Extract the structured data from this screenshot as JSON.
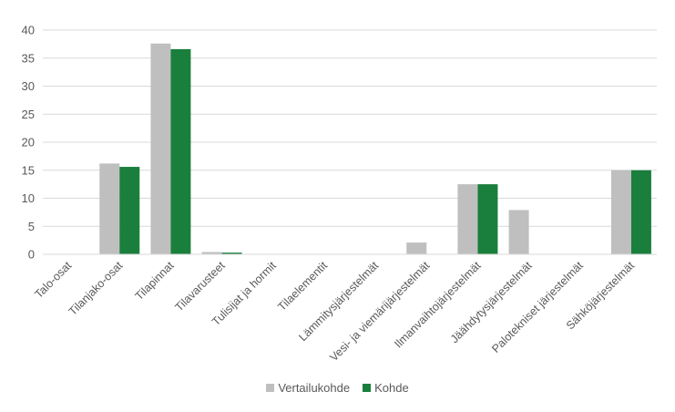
{
  "chart_data": {
    "type": "bar",
    "categories": [
      "Talo-osat",
      "Tilanjako-osat",
      "Tilapinnat",
      "Tilavarusteet",
      "Tulisijat ja hormit",
      "Tilaelementit",
      "Lämmitysjärjestelmät",
      "Vesi- ja viemärijärjestelmät",
      "Ilmanvaihtojärjestelmät",
      "Jäähdytysjärjestelmät",
      "Palotekniset järjestelmät",
      "Sähköjärjestelmät"
    ],
    "series": [
      {
        "name": "Vertailukohde",
        "color": "#bfbfbf",
        "values": [
          0,
          16.2,
          37.6,
          0.4,
          0,
          0,
          0,
          2.1,
          12.5,
          7.9,
          0,
          15.0
        ]
      },
      {
        "name": "Kohde",
        "color": "#1a7f3c",
        "values": [
          0,
          15.6,
          36.6,
          0.3,
          0,
          0,
          0,
          0,
          12.5,
          0,
          0,
          15.0
        ]
      }
    ],
    "ylim": [
      0,
      40
    ],
    "yticks": [
      0,
      5,
      10,
      15,
      20,
      25,
      30,
      35,
      40
    ],
    "grid": true,
    "legend_position": "bottom"
  }
}
